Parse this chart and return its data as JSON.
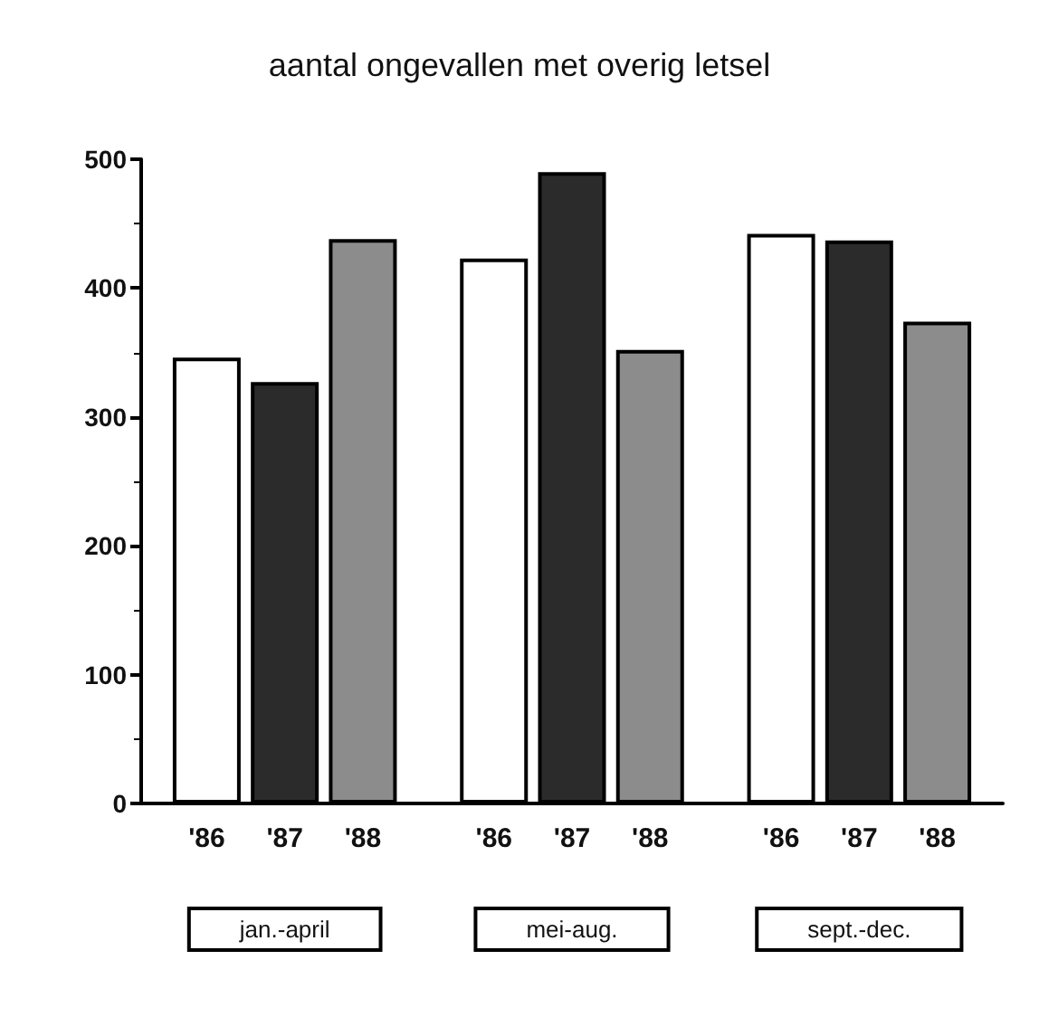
{
  "chart_data": {
    "type": "bar",
    "title": "aantal ongevallen met overig letsel",
    "categories": [
      "jan.-april",
      "mei-aug.",
      "sept.-dec."
    ],
    "series": [
      {
        "name": "'86",
        "color": "#ffffff",
        "values": [
          346,
          423,
          442
        ]
      },
      {
        "name": "'87",
        "color": "#2b2b2b",
        "values": [
          327,
          490,
          437
        ]
      },
      {
        "name": "'88",
        "color": "#8c8c8c",
        "values": [
          438,
          352,
          374
        ]
      }
    ],
    "ylim": [
      0,
      500
    ],
    "yticks": [
      0,
      100,
      200,
      300,
      400,
      500
    ],
    "grid": false,
    "legend": false
  }
}
